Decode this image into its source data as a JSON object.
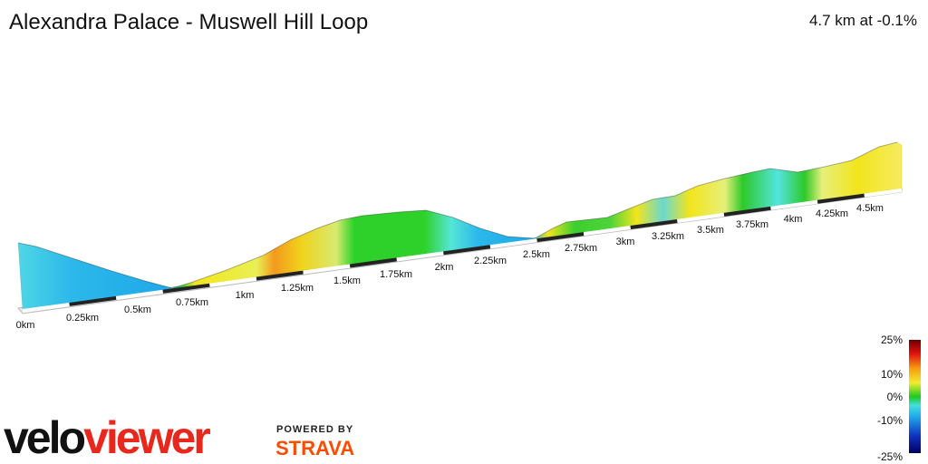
{
  "header": {
    "title": "Alexandra Palace - Muswell Hill Loop",
    "summary": "4.7 km at -0.1%"
  },
  "distance_labels": [
    "0km",
    "0.25km",
    "0.5km",
    "0.75km",
    "1km",
    "1.25km",
    "1.5km",
    "1.75km",
    "2km",
    "2.25km",
    "2.5km",
    "2.75km",
    "3km",
    "3.25km",
    "3.5km",
    "3.75km",
    "4km",
    "4.25km",
    "4.5km"
  ],
  "gradient_legend": [
    "25%",
    "10%",
    "0%",
    "-10%",
    "-25%"
  ],
  "logo": {
    "velo": "velo",
    "viewer": "viewer",
    "powered_by": "POWERED BY",
    "strava": "STRAVA"
  }
}
